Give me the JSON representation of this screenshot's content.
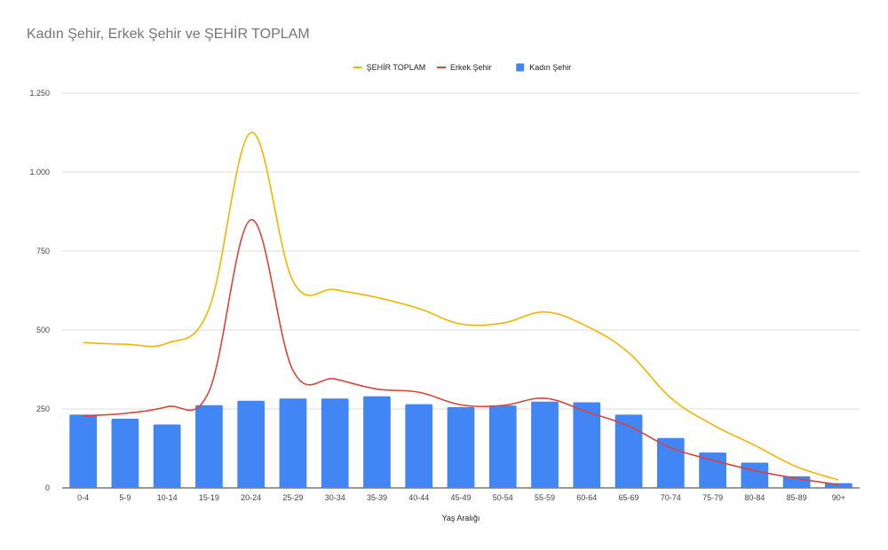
{
  "chart_data": {
    "type": "bar",
    "title": "Kadın Şehir, Erkek Şehir ve ŞEHİR TOPLAM",
    "xlabel": "Yaş Aralığı",
    "ylabel": "",
    "ylim": [
      0,
      1250
    ],
    "yticks": [
      0,
      250,
      500,
      750,
      1000,
      1250
    ],
    "ytick_labels": [
      "0",
      "250",
      "500",
      "750",
      "1.000",
      "1.250"
    ],
    "grid": true,
    "legend_position": "top",
    "categories": [
      "0-4",
      "5-9",
      "10-14",
      "15-19",
      "20-24",
      "25-29",
      "30-34",
      "35-39",
      "40-44",
      "45-49",
      "50-54",
      "55-59",
      "60-64",
      "65-69",
      "70-74",
      "75-79",
      "80-84",
      "85-89",
      "90+"
    ],
    "series": [
      {
        "name": "ŞEHİR TOPLAM",
        "type": "line",
        "color": "#f4b400",
        "values": [
          460,
          455,
          458,
          568,
          1125,
          655,
          628,
          603,
          568,
          519,
          522,
          557,
          512,
          428,
          285,
          200,
          135,
          67,
          25
        ]
      },
      {
        "name": "Erkek Şehir",
        "type": "line",
        "color": "#db4437",
        "values": [
          228,
          236,
          257,
          306,
          849,
          372,
          345,
          313,
          303,
          263,
          261,
          284,
          241,
          196,
          127,
          88,
          55,
          30,
          10
        ]
      },
      {
        "name": "Kadın Şehir",
        "type": "bar",
        "color": "#4285f4",
        "values": [
          232,
          219,
          201,
          262,
          276,
          283,
          283,
          290,
          265,
          256,
          261,
          273,
          271,
          232,
          158,
          112,
          80,
          37,
          15
        ]
      }
    ]
  }
}
